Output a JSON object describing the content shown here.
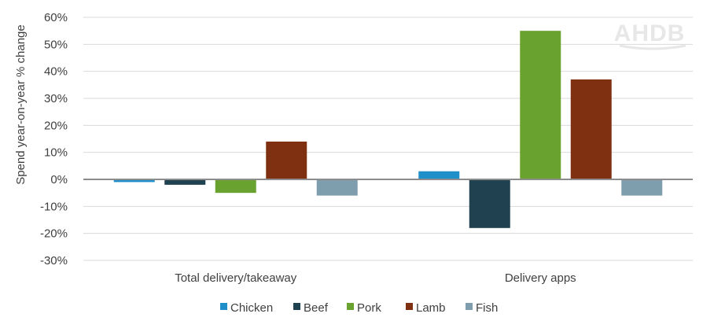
{
  "logo": "AHDB",
  "chart_data": {
    "type": "bar",
    "ylabel": "Spend year-on-year % change",
    "ylim": [
      -30,
      60
    ],
    "yticks": [
      -30,
      -20,
      -10,
      0,
      10,
      20,
      30,
      40,
      50,
      60
    ],
    "ytick_labels": [
      "-30%",
      "-20%",
      "-10%",
      "0%",
      "10%",
      "20%",
      "30%",
      "40%",
      "50%",
      "60%"
    ],
    "categories": [
      "Total delivery/takeaway",
      "Delivery apps"
    ],
    "grid": true,
    "legend_position": "bottom",
    "series": [
      {
        "name": "Chicken",
        "color": "#1f8fc9",
        "values": [
          -1,
          3
        ]
      },
      {
        "name": "Beef",
        "color": "#1f4150",
        "values": [
          -2,
          -18
        ]
      },
      {
        "name": "Pork",
        "color": "#6aa230",
        "values": [
          -5,
          55
        ]
      },
      {
        "name": "Lamb",
        "color": "#7f3010",
        "values": [
          14,
          37
        ]
      },
      {
        "name": "Fish",
        "color": "#7e9eae",
        "values": [
          -6,
          -6
        ]
      }
    ]
  }
}
